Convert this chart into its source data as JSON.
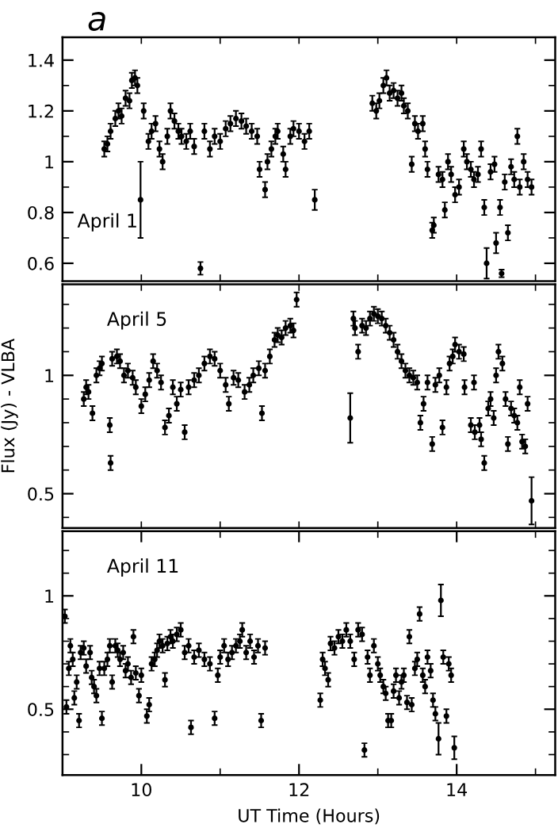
{
  "chart_data": [
    {
      "type": "scatter",
      "title": "a",
      "annotations": [
        "April 1"
      ],
      "marker": "circle",
      "tick_labels": "y",
      "grid": false,
      "legend": false,
      "xlim": [
        9,
        15.25
      ],
      "xticks": [
        {
          "value": 10,
          "label": null
        },
        {
          "value": 11,
          "label": null
        },
        {
          "value": 12,
          "label": null
        },
        {
          "value": 13,
          "label": null
        },
        {
          "value": 14,
          "label": null
        },
        {
          "value": 15,
          "label": null
        }
      ],
      "ylim": [
        0.53,
        1.49
      ],
      "yticks": [
        0.6,
        {
          "value": 0.7,
          "label": null
        },
        0.8,
        {
          "value": 0.9,
          "label": null
        },
        1,
        {
          "value": 1.1,
          "label": null
        },
        1.2,
        {
          "value": 1.3,
          "label": null
        },
        1.4
      ],
      "series": [
        {
          "color": "#000000",
          "x": [
            9.53,
            9.57,
            9.61,
            9.67,
            9.71,
            9.75,
            9.8,
            9.85,
            9.88,
            9.92,
            9.95,
            9.99,
            10.03,
            10.09,
            10.13,
            10.18,
            10.23,
            10.27,
            10.33,
            10.37,
            10.42,
            10.47,
            10.51,
            10.57,
            10.62,
            10.67,
            10.75,
            10.8,
            10.87,
            10.93,
            11.0,
            11.07,
            11.13,
            11.2,
            11.27,
            11.33,
            11.4,
            11.47,
            11.5,
            11.57,
            11.6,
            11.65,
            11.7,
            11.73,
            11.8,
            11.83,
            11.89,
            11.93,
            12.0,
            12.07,
            12.13,
            12.2,
            12.93,
            12.98,
            13.02,
            13.07,
            13.11,
            13.15,
            13.2,
            13.25,
            13.3,
            13.33,
            13.38,
            13.43,
            13.47,
            13.51,
            13.57,
            13.6,
            13.63,
            13.69,
            13.71,
            13.77,
            13.82,
            13.85,
            13.89,
            13.93,
            13.98,
            14.03,
            14.09,
            14.13,
            14.18,
            14.22,
            14.27,
            14.31,
            14.35,
            14.38,
            14.43,
            14.48,
            14.5,
            14.55,
            14.57,
            14.61,
            14.65,
            14.69,
            14.73,
            14.77,
            14.8,
            14.85,
            14.9,
            14.95
          ],
          "values": [
            1.05,
            1.07,
            1.12,
            1.17,
            1.2,
            1.18,
            1.25,
            1.24,
            1.32,
            1.33,
            1.3,
            0.85,
            1.2,
            1.08,
            1.12,
            1.15,
            1.05,
            1.0,
            1.1,
            1.2,
            1.16,
            1.12,
            1.1,
            1.08,
            1.12,
            1.06,
            0.58,
            1.12,
            1.05,
            1.1,
            1.08,
            1.13,
            1.15,
            1.17,
            1.16,
            1.14,
            1.12,
            1.1,
            0.97,
            0.89,
            1.0,
            1.05,
            1.1,
            1.12,
            1.03,
            0.97,
            1.1,
            1.13,
            1.12,
            1.08,
            1.12,
            0.85,
            1.23,
            1.2,
            1.24,
            1.3,
            1.33,
            1.27,
            1.28,
            1.25,
            1.27,
            1.22,
            1.2,
            0.99,
            1.15,
            1.12,
            1.15,
            1.05,
            0.97,
            0.73,
            0.75,
            0.95,
            0.93,
            0.81,
            1.0,
            0.95,
            0.87,
            0.9,
            1.05,
            1.0,
            0.97,
            0.93,
            0.95,
            1.05,
            0.82,
            0.6,
            0.96,
            0.99,
            0.68,
            0.82,
            0.56,
            0.92,
            0.72,
            0.98,
            0.93,
            1.1,
            0.9,
            1.0,
            0.93,
            0.9
          ],
          "errors": [
            0.03,
            0.03,
            0.03,
            0.03,
            0.03,
            0.03,
            0.03,
            0.03,
            0.03,
            0.03,
            0.03,
            0.15,
            0.03,
            0.03,
            0.03,
            0.03,
            0.03,
            0.03,
            0.03,
            0.03,
            0.03,
            0.03,
            0.03,
            0.03,
            0.03,
            0.03,
            0.025,
            0.03,
            0.03,
            0.03,
            0.03,
            0.03,
            0.03,
            0.03,
            0.03,
            0.03,
            0.03,
            0.03,
            0.03,
            0.03,
            0.03,
            0.03,
            0.03,
            0.03,
            0.03,
            0.03,
            0.03,
            0.03,
            0.03,
            0.03,
            0.03,
            0.04,
            0.03,
            0.03,
            0.03,
            0.03,
            0.03,
            0.03,
            0.03,
            0.03,
            0.03,
            0.03,
            0.03,
            0.03,
            0.03,
            0.03,
            0.03,
            0.03,
            0.03,
            0.03,
            0.03,
            0.03,
            0.03,
            0.03,
            0.03,
            0.03,
            0.03,
            0.03,
            0.03,
            0.03,
            0.03,
            0.03,
            0.03,
            0.03,
            0.03,
            0.06,
            0.03,
            0.03,
            0.04,
            0.03,
            0.015,
            0.03,
            0.03,
            0.03,
            0.03,
            0.03,
            0.03,
            0.03,
            0.03,
            0.03
          ]
        }
      ]
    },
    {
      "type": "scatter",
      "annotations": [
        "April 5"
      ],
      "ylabel": "Flux (Jy) - VLBA",
      "marker": "circle",
      "tick_labels": "y",
      "grid": false,
      "legend": false,
      "xlim": [
        9,
        15.25
      ],
      "xticks": [
        {
          "value": 10,
          "label": null
        },
        {
          "value": 11,
          "label": null
        },
        {
          "value": 12,
          "label": null
        },
        {
          "value": 13,
          "label": null
        },
        {
          "value": 14,
          "label": null
        },
        {
          "value": 15,
          "label": null
        }
      ],
      "ylim": [
        0.355,
        1.385
      ],
      "yticks": [
        {
          "value": 0.4,
          "label": null
        },
        0.5,
        {
          "value": 0.6,
          "label": null
        },
        {
          "value": 0.7,
          "label": null
        },
        {
          "value": 0.8,
          "label": null
        },
        {
          "value": 0.9,
          "label": null
        },
        1,
        {
          "value": 1.1,
          "label": null
        },
        {
          "value": 1.2,
          "label": null
        },
        {
          "value": 1.3,
          "label": null
        }
      ],
      "series": [
        {
          "color": "#000000",
          "x": [
            9.27,
            9.3,
            9.33,
            9.38,
            9.43,
            9.47,
            9.5,
            9.6,
            9.61,
            9.63,
            9.69,
            9.73,
            9.78,
            9.83,
            9.89,
            9.93,
            10.0,
            10.05,
            10.1,
            10.15,
            10.2,
            10.25,
            10.3,
            10.35,
            10.4,
            10.45,
            10.5,
            10.55,
            10.6,
            10.67,
            10.73,
            10.8,
            10.87,
            10.93,
            11.0,
            11.07,
            11.11,
            11.17,
            11.23,
            11.31,
            11.37,
            11.42,
            11.49,
            11.53,
            11.57,
            11.63,
            11.69,
            11.73,
            11.78,
            11.83,
            11.89,
            11.93,
            11.97,
            12.65,
            12.69,
            12.71,
            12.75,
            12.8,
            12.85,
            12.9,
            12.95,
            13.0,
            13.05,
            13.1,
            13.15,
            13.2,
            13.25,
            13.3,
            13.35,
            13.4,
            13.45,
            13.5,
            13.54,
            13.58,
            13.63,
            13.69,
            13.73,
            13.78,
            13.82,
            13.87,
            13.91,
            13.95,
            13.98,
            14.03,
            14.09,
            14.1,
            14.18,
            14.22,
            14.23,
            14.29,
            14.31,
            14.35,
            14.4,
            14.43,
            14.47,
            14.5,
            14.53,
            14.58,
            14.62,
            14.65,
            14.69,
            14.73,
            14.77,
            14.8,
            14.83,
            14.87,
            14.9,
            14.95
          ],
          "values": [
            0.9,
            0.95,
            0.93,
            0.84,
            1.0,
            1.03,
            1.05,
            0.79,
            0.63,
            1.07,
            1.08,
            1.06,
            1.0,
            1.02,
            0.99,
            0.95,
            0.87,
            0.92,
            0.98,
            1.06,
            1.02,
            0.97,
            0.78,
            0.83,
            0.95,
            0.88,
            0.94,
            0.76,
            0.95,
            0.98,
            1.0,
            1.05,
            1.08,
            1.07,
            1.02,
            0.96,
            0.88,
            0.99,
            0.98,
            0.93,
            0.96,
            1.0,
            1.03,
            0.84,
            1.02,
            1.08,
            1.15,
            1.17,
            1.16,
            1.2,
            1.21,
            1.19,
            1.32,
            0.82,
            1.24,
            1.2,
            1.1,
            1.21,
            1.2,
            1.24,
            1.26,
            1.25,
            1.24,
            1.21,
            1.18,
            1.15,
            1.1,
            1.06,
            1.02,
            1.0,
            0.99,
            0.97,
            0.8,
            0.88,
            0.97,
            0.71,
            0.96,
            1.0,
            0.78,
            0.95,
            1.05,
            1.08,
            1.13,
            1.1,
            1.09,
            0.95,
            0.79,
            0.97,
            0.76,
            0.79,
            0.73,
            0.63,
            0.86,
            0.9,
            0.82,
            1.0,
            1.1,
            1.05,
            0.9,
            0.71,
            0.86,
            0.83,
            0.8,
            0.95,
            0.72,
            0.7,
            0.88,
            0.47
          ],
          "errors": [
            0.03,
            0.03,
            0.03,
            0.03,
            0.03,
            0.03,
            0.03,
            0.03,
            0.03,
            0.03,
            0.03,
            0.03,
            0.03,
            0.03,
            0.03,
            0.03,
            0.03,
            0.03,
            0.03,
            0.03,
            0.03,
            0.03,
            0.03,
            0.03,
            0.03,
            0.03,
            0.03,
            0.03,
            0.03,
            0.03,
            0.03,
            0.03,
            0.03,
            0.03,
            0.03,
            0.03,
            0.03,
            0.03,
            0.03,
            0.03,
            0.03,
            0.03,
            0.03,
            0.03,
            0.03,
            0.03,
            0.03,
            0.03,
            0.03,
            0.03,
            0.03,
            0.03,
            0.03,
            0.105,
            0.03,
            0.03,
            0.03,
            0.03,
            0.03,
            0.03,
            0.03,
            0.03,
            0.03,
            0.03,
            0.03,
            0.03,
            0.03,
            0.03,
            0.03,
            0.03,
            0.03,
            0.03,
            0.03,
            0.03,
            0.03,
            0.03,
            0.03,
            0.03,
            0.03,
            0.03,
            0.03,
            0.03,
            0.03,
            0.03,
            0.03,
            0.03,
            0.03,
            0.03,
            0.03,
            0.03,
            0.03,
            0.03,
            0.03,
            0.03,
            0.03,
            0.03,
            0.03,
            0.03,
            0.03,
            0.03,
            0.03,
            0.03,
            0.03,
            0.03,
            0.03,
            0.03,
            0.03,
            0.1
          ]
        }
      ]
    },
    {
      "type": "scatter",
      "annotations": [
        "April 11"
      ],
      "xlabel": "UT Time (Hours)",
      "marker": "circle",
      "grid": false,
      "legend": false,
      "xlim": [
        9,
        15.25
      ],
      "xticks": [
        10,
        {
          "value": 11,
          "label": null
        },
        12,
        {
          "value": 13,
          "label": null
        },
        14,
        {
          "value": 15,
          "label": null
        }
      ],
      "ylim": [
        0.21,
        1.285
      ],
      "yticks": [
        {
          "value": 0.3,
          "label": null
        },
        {
          "value": 0.4,
          "label": null
        },
        0.5,
        {
          "value": 0.6,
          "label": null
        },
        {
          "value": 0.7,
          "label": null
        },
        {
          "value": 0.8,
          "label": null
        },
        {
          "value": 0.9,
          "label": null
        },
        1,
        {
          "value": 1.1,
          "label": null
        },
        {
          "value": 1.2,
          "label": null
        }
      ],
      "series": [
        {
          "color": "#000000",
          "x": [
            9.03,
            9.05,
            9.08,
            9.1,
            9.13,
            9.15,
            9.18,
            9.21,
            9.23,
            9.27,
            9.3,
            9.35,
            9.37,
            9.4,
            9.43,
            9.47,
            9.5,
            9.53,
            9.57,
            9.6,
            9.63,
            9.67,
            9.7,
            9.73,
            9.77,
            9.8,
            9.83,
            9.87,
            9.9,
            9.93,
            9.97,
            10.0,
            10.07,
            10.1,
            10.13,
            10.17,
            10.2,
            10.23,
            10.27,
            10.3,
            10.33,
            10.37,
            10.4,
            10.45,
            10.5,
            10.55,
            10.6,
            10.63,
            10.67,
            10.73,
            10.8,
            10.87,
            10.93,
            10.97,
            11.0,
            11.05,
            11.1,
            11.15,
            11.2,
            11.25,
            11.28,
            11.33,
            11.38,
            11.43,
            11.48,
            11.52,
            11.57,
            12.27,
            12.3,
            12.33,
            12.37,
            12.4,
            12.45,
            12.5,
            12.55,
            12.6,
            12.65,
            12.7,
            12.75,
            12.8,
            12.83,
            12.87,
            12.9,
            12.95,
            13.0,
            13.03,
            13.07,
            13.1,
            13.13,
            13.17,
            13.2,
            13.23,
            13.27,
            13.3,
            13.33,
            13.37,
            13.4,
            13.43,
            13.47,
            13.5,
            13.53,
            13.57,
            13.6,
            13.63,
            13.67,
            13.7,
            13.73,
            13.77,
            13.8,
            13.83,
            13.87,
            13.9,
            13.93,
            13.97
          ],
          "values": [
            0.91,
            0.51,
            0.68,
            0.78,
            0.72,
            0.55,
            0.62,
            0.45,
            0.75,
            0.77,
            0.69,
            0.75,
            0.64,
            0.6,
            0.56,
            0.68,
            0.46,
            0.68,
            0.72,
            0.78,
            0.62,
            0.78,
            0.76,
            0.72,
            0.75,
            0.67,
            0.7,
            0.64,
            0.82,
            0.66,
            0.56,
            0.65,
            0.47,
            0.52,
            0.7,
            0.72,
            0.76,
            0.8,
            0.78,
            0.63,
            0.79,
            0.82,
            0.8,
            0.83,
            0.85,
            0.75,
            0.78,
            0.42,
            0.73,
            0.76,
            0.72,
            0.7,
            0.46,
            0.65,
            0.73,
            0.78,
            0.72,
            0.75,
            0.78,
            0.8,
            0.85,
            0.75,
            0.8,
            0.73,
            0.78,
            0.45,
            0.77,
            0.54,
            0.72,
            0.68,
            0.63,
            0.79,
            0.77,
            0.82,
            0.8,
            0.85,
            0.8,
            0.72,
            0.85,
            0.83,
            0.32,
            0.73,
            0.65,
            0.78,
            0.7,
            0.65,
            0.6,
            0.57,
            0.45,
            0.45,
            0.58,
            0.65,
            0.55,
            0.62,
            0.65,
            0.53,
            0.82,
            0.52,
            0.68,
            0.72,
            0.92,
            0.65,
            0.6,
            0.73,
            0.67,
            0.54,
            0.48,
            0.37,
            0.98,
            0.73,
            0.47,
            0.7,
            0.65,
            0.33
          ],
          "errors": [
            0.03,
            0.03,
            0.03,
            0.03,
            0.03,
            0.03,
            0.03,
            0.03,
            0.03,
            0.03,
            0.03,
            0.03,
            0.03,
            0.03,
            0.03,
            0.03,
            0.03,
            0.03,
            0.03,
            0.03,
            0.03,
            0.03,
            0.03,
            0.03,
            0.03,
            0.03,
            0.03,
            0.03,
            0.03,
            0.03,
            0.03,
            0.03,
            0.03,
            0.03,
            0.03,
            0.03,
            0.03,
            0.03,
            0.03,
            0.03,
            0.03,
            0.03,
            0.03,
            0.03,
            0.03,
            0.03,
            0.03,
            0.03,
            0.03,
            0.03,
            0.03,
            0.03,
            0.03,
            0.03,
            0.03,
            0.03,
            0.03,
            0.03,
            0.03,
            0.03,
            0.03,
            0.03,
            0.03,
            0.03,
            0.03,
            0.03,
            0.03,
            0.03,
            0.03,
            0.03,
            0.03,
            0.03,
            0.03,
            0.03,
            0.03,
            0.03,
            0.03,
            0.03,
            0.03,
            0.03,
            0.03,
            0.03,
            0.03,
            0.03,
            0.03,
            0.03,
            0.03,
            0.03,
            0.03,
            0.03,
            0.03,
            0.03,
            0.03,
            0.03,
            0.03,
            0.03,
            0.03,
            0.03,
            0.03,
            0.03,
            0.03,
            0.03,
            0.03,
            0.03,
            0.03,
            0.03,
            0.03,
            0.07,
            0.07,
            0.03,
            0.03,
            0.03,
            0.03,
            0.05
          ]
        }
      ]
    }
  ]
}
